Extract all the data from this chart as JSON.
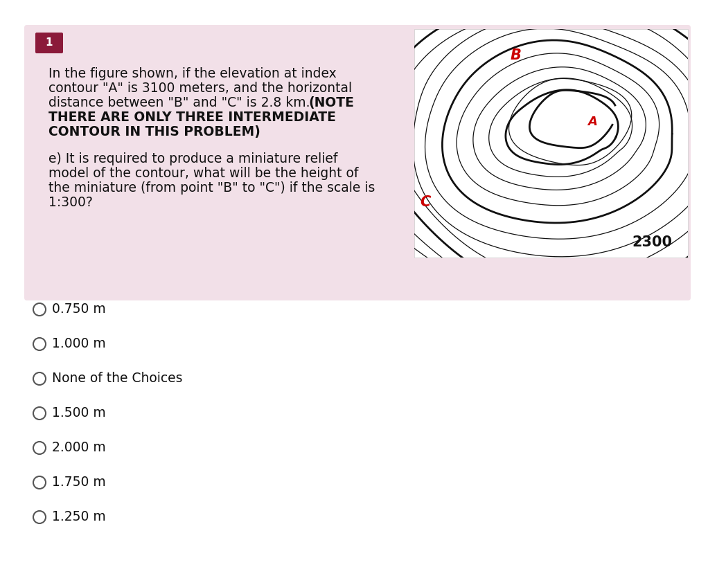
{
  "bg_color": "#ffffff",
  "card_bg_color": "#f2e0e8",
  "badge_color": "#8b1a3a",
  "badge_text": "1",
  "badge_text_color": "#ffffff",
  "line1": "In the figure shown, if the elevation at index",
  "line2": "contour \"A\" is 3100 meters, and the horizontal",
  "line3": "distance between \"B\" and \"C\" is 2.8 km. ",
  "line3_bold": "(NOTE",
  "line4_bold": "THERE ARE ONLY THREE INTERMEDIATE",
  "line5_bold": "CONTOUR IN THIS PROBLEM)",
  "sub_q1": "e) It is required to produce a miniature relief",
  "sub_q2": "model of the contour, what will be the height of",
  "sub_q3": "the miniature (from point \"B\" to \"C\") if the scale is",
  "sub_q4": "1:300?",
  "choices": [
    "0.750 m",
    "1.000 m",
    "None of the Choices",
    "1.500 m",
    "2.000 m",
    "1.750 m",
    "1.250 m"
  ],
  "contour_label_2300": "2300",
  "label_A": "A",
  "label_B": "B",
  "label_C": "C",
  "label_color": "#cc0000",
  "contour_color": "#111111",
  "idx_lw": 2.0,
  "int_lw": 0.9,
  "text_fontsize": 13.5,
  "bold_fontsize": 13.5,
  "choice_fontsize": 13.5
}
